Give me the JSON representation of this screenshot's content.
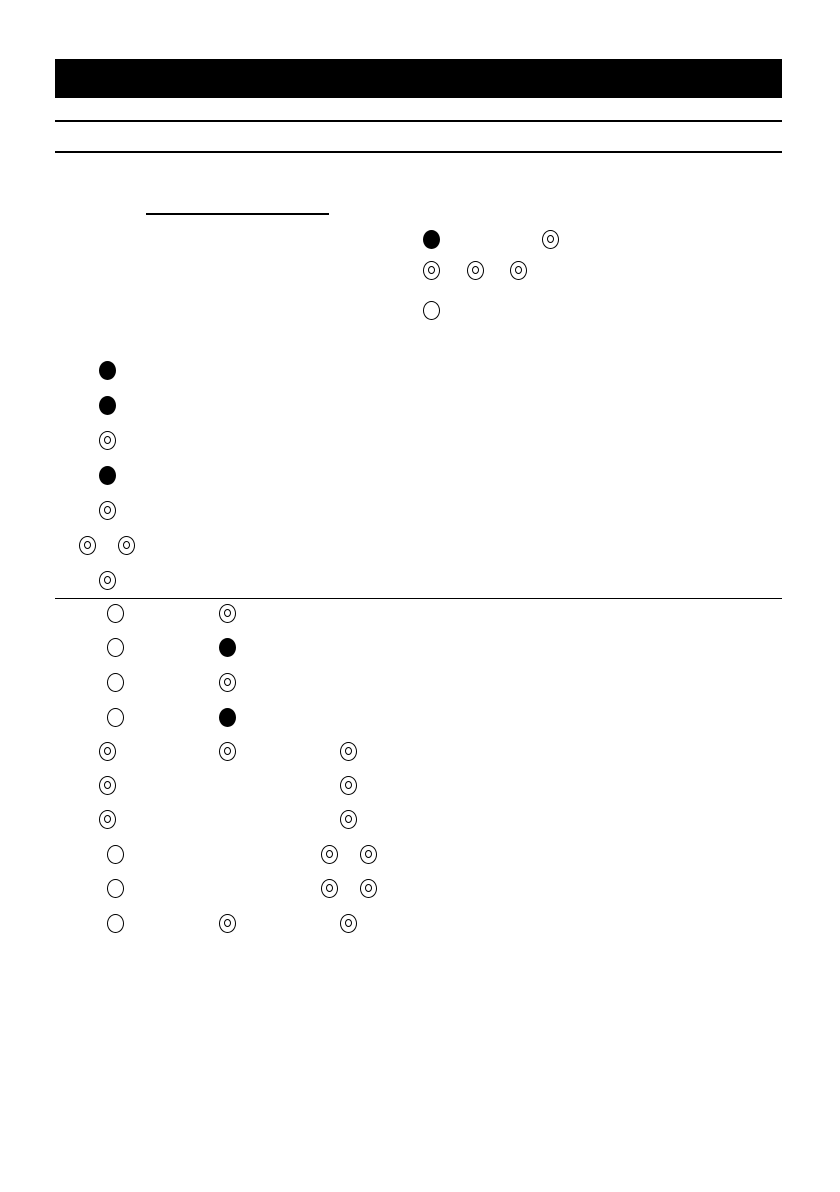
{
  "colors": {
    "ink": "#000000",
    "paper": "#ffffff"
  },
  "symbol_legend": {
    "filled": "filled-circle-icon",
    "double": "double-circle-icon",
    "open": "open-circle-icon"
  },
  "top_table": [
    [
      "filled",
      "double"
    ],
    [
      "double",
      "double",
      "double"
    ],
    [
      "open"
    ]
  ],
  "left_list": [
    [
      "filled"
    ],
    [
      "filled"
    ],
    [
      "double"
    ],
    [
      "filled"
    ],
    [
      "double"
    ],
    [
      "double",
      "double"
    ],
    [
      "double"
    ]
  ],
  "bottom_table": [
    [
      "open",
      "double"
    ],
    [
      "open",
      "filled"
    ],
    [
      "open",
      "double"
    ],
    [
      "open",
      "filled"
    ],
    [
      "double",
      "double",
      "double"
    ],
    [
      "double",
      "double"
    ],
    [
      "double",
      "double"
    ],
    [
      "open",
      "double",
      "double"
    ],
    [
      "open",
      "double",
      "double"
    ],
    [
      "open",
      "double",
      "double"
    ]
  ]
}
